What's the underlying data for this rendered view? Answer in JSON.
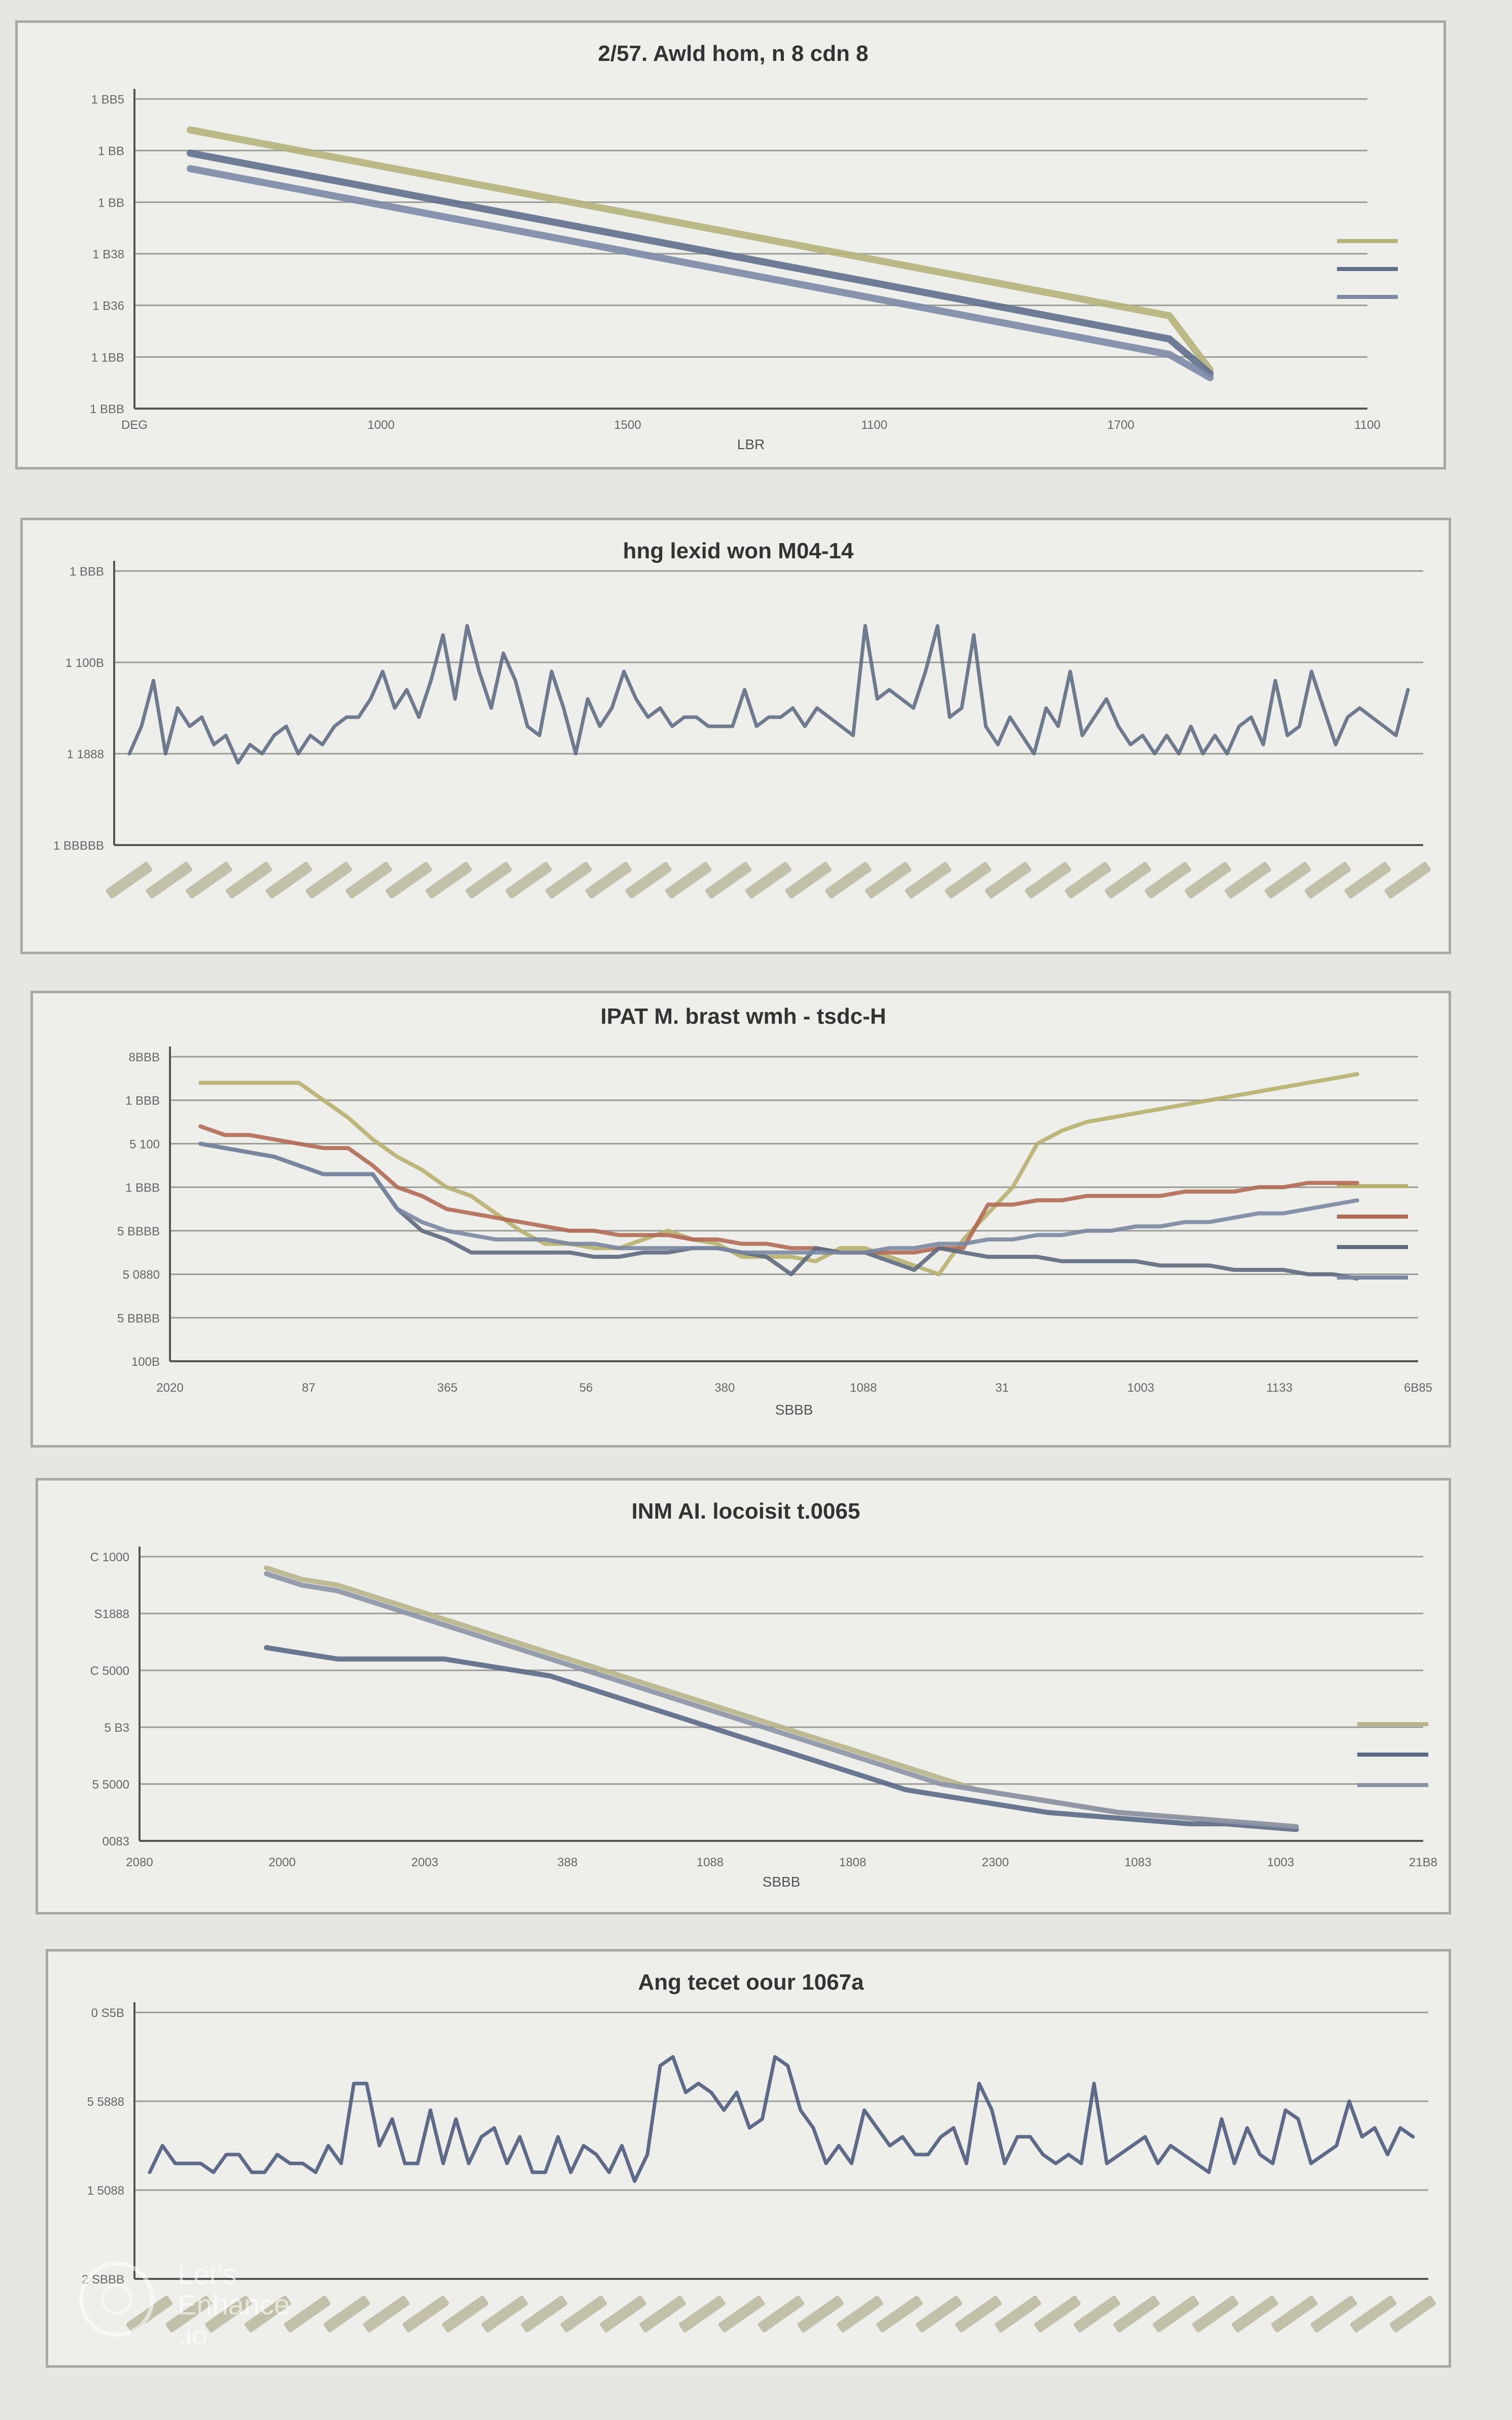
{
  "chart_data": [
    {
      "type": "line",
      "title": "2/57. Awld hom, n 8 cdn 8",
      "xlabel": "LBR",
      "ylabel": "",
      "x": [
        0,
        1,
        2,
        3,
        4,
        5,
        6,
        7,
        8,
        9,
        10,
        11,
        12,
        13,
        14,
        15,
        16,
        17,
        18,
        19,
        20,
        21,
        22,
        23,
        24,
        25
      ],
      "x_tick_labels": [
        "DEG",
        "1000",
        "1500",
        "1100",
        "1700",
        "1100"
      ],
      "y_tick_labels": [
        "1 BB5",
        "1 BB",
        "1 BB",
        "1 B38",
        "1 B36",
        "1 1BB",
        "1 BBB"
      ],
      "ylim": [
        0,
        8
      ],
      "series": [
        {
          "color": "#b5b37a",
          "values": [
            7.2,
            7.0,
            6.8,
            6.6,
            6.4,
            6.2,
            6.0,
            5.8,
            5.6,
            5.4,
            5.2,
            5.0,
            4.8,
            4.6,
            4.4,
            4.2,
            4.0,
            3.8,
            3.6,
            3.4,
            3.2,
            3.0,
            2.8,
            2.6,
            2.4,
            1.0
          ]
        },
        {
          "color": "#5f6f8c",
          "values": [
            6.6,
            6.4,
            6.2,
            6.0,
            5.8,
            5.6,
            5.4,
            5.2,
            5.0,
            4.8,
            4.6,
            4.4,
            4.2,
            4.0,
            3.8,
            3.6,
            3.4,
            3.2,
            3.0,
            2.8,
            2.6,
            2.4,
            2.2,
            2.0,
            1.8,
            0.9
          ]
        },
        {
          "color": "#7c8aa6",
          "values": [
            6.2,
            6.0,
            5.8,
            5.6,
            5.4,
            5.2,
            5.0,
            4.8,
            4.6,
            4.4,
            4.2,
            4.0,
            3.8,
            3.6,
            3.4,
            3.2,
            3.0,
            2.8,
            2.6,
            2.4,
            2.2,
            2.0,
            1.8,
            1.6,
            1.4,
            0.8
          ]
        }
      ],
      "legend_position": "right",
      "grid": true
    },
    {
      "type": "line",
      "title": "hng lexid won M04-14",
      "xlabel": "",
      "ylabel": "",
      "y_tick_labels": [
        "1 BBB",
        "1 100B",
        "1 1888",
        "1 BBBBB"
      ],
      "ylim": [
        0,
        3
      ],
      "x_tick_count": 33,
      "series": [
        {
          "color": "#5f6e84",
          "values": [
            1.0,
            1.3,
            1.8,
            1.0,
            1.5,
            1.3,
            1.4,
            1.1,
            1.2,
            0.9,
            1.1,
            1.0,
            1.2,
            1.3,
            1.0,
            1.2,
            1.1,
            1.3,
            1.4,
            1.4,
            1.6,
            1.9,
            1.5,
            1.7,
            1.4,
            1.8,
            2.3,
            1.6,
            2.4,
            1.9,
            1.5,
            2.1,
            1.8,
            1.3,
            1.2,
            1.9,
            1.5,
            1.0,
            1.6,
            1.3,
            1.5,
            1.9,
            1.6,
            1.4,
            1.5,
            1.3,
            1.4,
            1.4,
            1.3,
            1.3,
            1.3,
            1.7,
            1.3,
            1.4,
            1.4,
            1.5,
            1.3,
            1.5,
            1.4,
            1.3,
            1.2,
            2.4,
            1.6,
            1.7,
            1.6,
            1.5,
            1.9,
            2.4,
            1.4,
            1.5,
            2.3,
            1.3,
            1.1,
            1.4,
            1.2,
            1.0,
            1.5,
            1.3,
            1.9,
            1.2,
            1.4,
            1.6,
            1.3,
            1.1,
            1.2,
            1.0,
            1.2,
            1.0,
            1.3,
            1.0,
            1.2,
            1.0,
            1.3,
            1.4,
            1.1,
            1.8,
            1.2,
            1.3,
            1.9,
            1.5,
            1.1,
            1.4,
            1.5,
            1.4,
            1.3,
            1.2,
            1.7
          ]
        }
      ],
      "grid": true
    },
    {
      "type": "line",
      "title": "IPAT M. brast wmh - tsdc-H",
      "xlabel": "SBBB",
      "ylabel": "",
      "x_tick_labels": [
        "2020",
        "87",
        "365",
        "56",
        "380",
        "1088",
        "31",
        "1003",
        "1133",
        "6B85"
      ],
      "y_tick_labels": [
        "8BBB",
        "1 BBB",
        "5 100",
        "1 BBB",
        "5 BBBB",
        "5 0880",
        "5 BBBB",
        "100B"
      ],
      "ylim": [
        0,
        7
      ],
      "series": [
        {
          "color": "#b7b06f",
          "values": [
            6.4,
            6.4,
            6.4,
            6.4,
            6.4,
            6.0,
            5.6,
            5.1,
            4.7,
            4.4,
            4.0,
            3.8,
            3.4,
            3.0,
            2.7,
            2.7,
            2.6,
            2.6,
            2.8,
            3.0,
            2.8,
            2.7,
            2.4,
            2.4,
            2.4,
            2.3,
            2.6,
            2.6,
            2.4,
            2.2,
            2.0,
            2.8,
            3.4,
            4.0,
            5.0,
            5.3,
            5.5,
            5.6,
            5.7,
            5.8,
            5.9,
            6.0,
            6.1,
            6.2,
            6.3,
            6.4,
            6.5,
            6.6
          ]
        },
        {
          "color": "#b06a55",
          "values": [
            5.4,
            5.2,
            5.2,
            5.1,
            5.0,
            4.9,
            4.9,
            4.5,
            4.0,
            3.8,
            3.5,
            3.4,
            3.3,
            3.2,
            3.1,
            3.0,
            3.0,
            2.9,
            2.9,
            2.9,
            2.8,
            2.8,
            2.7,
            2.7,
            2.6,
            2.6,
            2.5,
            2.5,
            2.5,
            2.5,
            2.6,
            2.6,
            3.6,
            3.6,
            3.7,
            3.7,
            3.8,
            3.8,
            3.8,
            3.8,
            3.9,
            3.9,
            3.9,
            4.0,
            4.0,
            4.1,
            4.1,
            4.1
          ]
        },
        {
          "color": "#5d6a7f",
          "values": [
            5.0,
            4.9,
            4.8,
            4.7,
            4.5,
            4.3,
            4.3,
            4.3,
            3.5,
            3.0,
            2.8,
            2.5,
            2.5,
            2.5,
            2.5,
            2.5,
            2.4,
            2.4,
            2.5,
            2.5,
            2.6,
            2.6,
            2.5,
            2.4,
            2.0,
            2.6,
            2.5,
            2.5,
            2.3,
            2.1,
            2.6,
            2.5,
            2.4,
            2.4,
            2.4,
            2.3,
            2.3,
            2.3,
            2.3,
            2.2,
            2.2,
            2.2,
            2.1,
            2.1,
            2.1,
            2.0,
            2.0,
            1.9
          ]
        },
        {
          "color": "#7987a0",
          "values": [
            5.0,
            4.9,
            4.8,
            4.7,
            4.5,
            4.3,
            4.3,
            4.3,
            3.5,
            3.2,
            3.0,
            2.9,
            2.8,
            2.8,
            2.8,
            2.7,
            2.7,
            2.6,
            2.6,
            2.6,
            2.6,
            2.6,
            2.5,
            2.5,
            2.5,
            2.5,
            2.5,
            2.5,
            2.6,
            2.6,
            2.7,
            2.7,
            2.8,
            2.8,
            2.9,
            2.9,
            3.0,
            3.0,
            3.1,
            3.1,
            3.2,
            3.2,
            3.3,
            3.4,
            3.4,
            3.5,
            3.6,
            3.7
          ]
        }
      ],
      "legend_position": "right",
      "grid": true
    },
    {
      "type": "line",
      "title": "INM AI. locoisit t.0065",
      "xlabel": "SBBB",
      "ylabel": "",
      "x_tick_labels": [
        "2080",
        "2000",
        "2003",
        "388",
        "1088",
        "1808",
        "2300",
        "1083",
        "1003",
        "21B8"
      ],
      "y_tick_labels": [
        "C 1000",
        "S1888",
        "C 5000",
        "5 B3",
        "5 5000",
        "0083"
      ],
      "ylim": [
        0,
        5
      ],
      "series": [
        {
          "color": "#b8b48a",
          "values": [
            4.8,
            4.6,
            4.5,
            4.3,
            4.1,
            3.9,
            3.7,
            3.5,
            3.3,
            3.1,
            2.9,
            2.7,
            2.5,
            2.3,
            2.1,
            1.9,
            1.7,
            1.5,
            1.3,
            1.1,
            0.9,
            0.8,
            0.7,
            0.6,
            0.5,
            0.45,
            0.4,
            0.35,
            0.3,
            0.25
          ]
        },
        {
          "color": "#5b6986",
          "values": [
            3.4,
            3.3,
            3.2,
            3.2,
            3.2,
            3.2,
            3.1,
            3.0,
            2.9,
            2.7,
            2.5,
            2.3,
            2.1,
            1.9,
            1.7,
            1.5,
            1.3,
            1.1,
            0.9,
            0.8,
            0.7,
            0.6,
            0.5,
            0.45,
            0.4,
            0.35,
            0.3,
            0.3,
            0.25,
            0.2
          ]
        },
        {
          "color": "#8c93a6",
          "values": [
            4.7,
            4.5,
            4.4,
            4.2,
            4.0,
            3.8,
            3.6,
            3.4,
            3.2,
            3.0,
            2.8,
            2.6,
            2.4,
            2.2,
            2.0,
            1.8,
            1.6,
            1.4,
            1.2,
            1.0,
            0.9,
            0.8,
            0.7,
            0.6,
            0.5,
            0.45,
            0.4,
            0.35,
            0.3,
            0.25
          ]
        }
      ],
      "legend_position": "right",
      "grid": true
    },
    {
      "type": "line",
      "title": "Ang tecet oour 1067a",
      "xlabel": "",
      "ylabel": "",
      "y_tick_labels": [
        "0 S5B",
        "5 5888",
        "1 5088",
        "2 SBBB"
      ],
      "ylim": [
        0,
        3
      ],
      "x_tick_count": 33,
      "series": [
        {
          "color": "#4e5c7d",
          "values": [
            1.2,
            1.5,
            1.3,
            1.3,
            1.3,
            1.2,
            1.4,
            1.4,
            1.2,
            1.2,
            1.4,
            1.3,
            1.3,
            1.2,
            1.5,
            1.3,
            2.2,
            2.2,
            1.5,
            1.8,
            1.3,
            1.3,
            1.9,
            1.3,
            1.8,
            1.3,
            1.6,
            1.7,
            1.3,
            1.6,
            1.2,
            1.2,
            1.6,
            1.2,
            1.5,
            1.4,
            1.2,
            1.5,
            1.1,
            1.4,
            2.4,
            2.5,
            2.1,
            2.2,
            2.1,
            1.9,
            2.1,
            1.7,
            1.8,
            2.5,
            2.4,
            1.9,
            1.7,
            1.3,
            1.5,
            1.3,
            1.9,
            1.7,
            1.5,
            1.6,
            1.4,
            1.4,
            1.6,
            1.7,
            1.3,
            2.2,
            1.9,
            1.3,
            1.6,
            1.6,
            1.4,
            1.3,
            1.4,
            1.3,
            2.2,
            1.3,
            1.4,
            1.5,
            1.6,
            1.3,
            1.5,
            1.4,
            1.3,
            1.2,
            1.8,
            1.3,
            1.7,
            1.4,
            1.3,
            1.9,
            1.8,
            1.3,
            1.4,
            1.5,
            2.0,
            1.6,
            1.7,
            1.4,
            1.7,
            1.6
          ]
        }
      ],
      "grid": true
    }
  ],
  "watermark": {
    "line1": "Let's",
    "line2": "Enhance",
    "line3": ".io"
  }
}
